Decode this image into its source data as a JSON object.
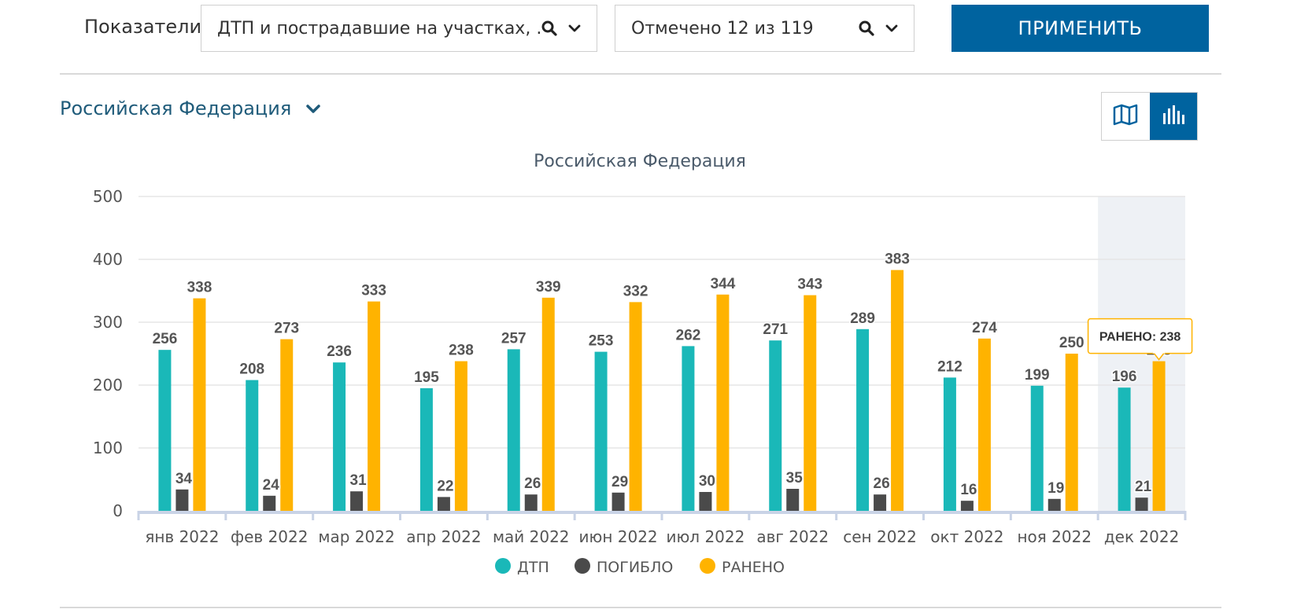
{
  "filters": {
    "label": "Показатели",
    "indicators_value": "ДТП и пострадавшие на участках, ...",
    "checked_value": "Отмечено 12 из 119",
    "apply_label": "ПРИМЕНИТЬ"
  },
  "region": {
    "name": "Российская Федерация"
  },
  "icons": {
    "search": "search-icon",
    "dropdown": "chevron-down-icon",
    "map_view": "map-icon",
    "chart_view": "bar-chart-icon"
  },
  "colors": {
    "accent": "#00639f",
    "dtp": "#1ab8b8",
    "killed": "#4a4a4a",
    "injured": "#ffb300",
    "highlight": "#eef1f5"
  },
  "tooltip": {
    "text": "РАНЕНО: 238",
    "category_index": 11,
    "series_index": 2
  },
  "chart_data": {
    "type": "bar",
    "title": "Российская Федерация",
    "xlabel": "",
    "ylabel": "",
    "ylim": [
      0,
      500
    ],
    "yticks": [
      0,
      100,
      200,
      300,
      400,
      500
    ],
    "grid": true,
    "legend_position": "bottom",
    "highlighted_category": "дек 2022",
    "categories": [
      "янв 2022",
      "фев 2022",
      "мар 2022",
      "апр 2022",
      "май 2022",
      "июн 2022",
      "июл 2022",
      "авг 2022",
      "сен 2022",
      "окт 2022",
      "ноя 2022",
      "дек 2022"
    ],
    "series": [
      {
        "name": "ДТП",
        "color": "#1ab8b8",
        "values": [
          256,
          208,
          236,
          195,
          257,
          253,
          262,
          271,
          289,
          212,
          199,
          196
        ]
      },
      {
        "name": "ПОГИБЛО",
        "color": "#4a4a4a",
        "values": [
          34,
          24,
          31,
          22,
          26,
          29,
          30,
          35,
          26,
          16,
          19,
          21
        ]
      },
      {
        "name": "РАНЕНО",
        "color": "#ffb300",
        "values": [
          338,
          273,
          333,
          238,
          339,
          332,
          344,
          343,
          383,
          274,
          250,
          238
        ]
      }
    ]
  }
}
